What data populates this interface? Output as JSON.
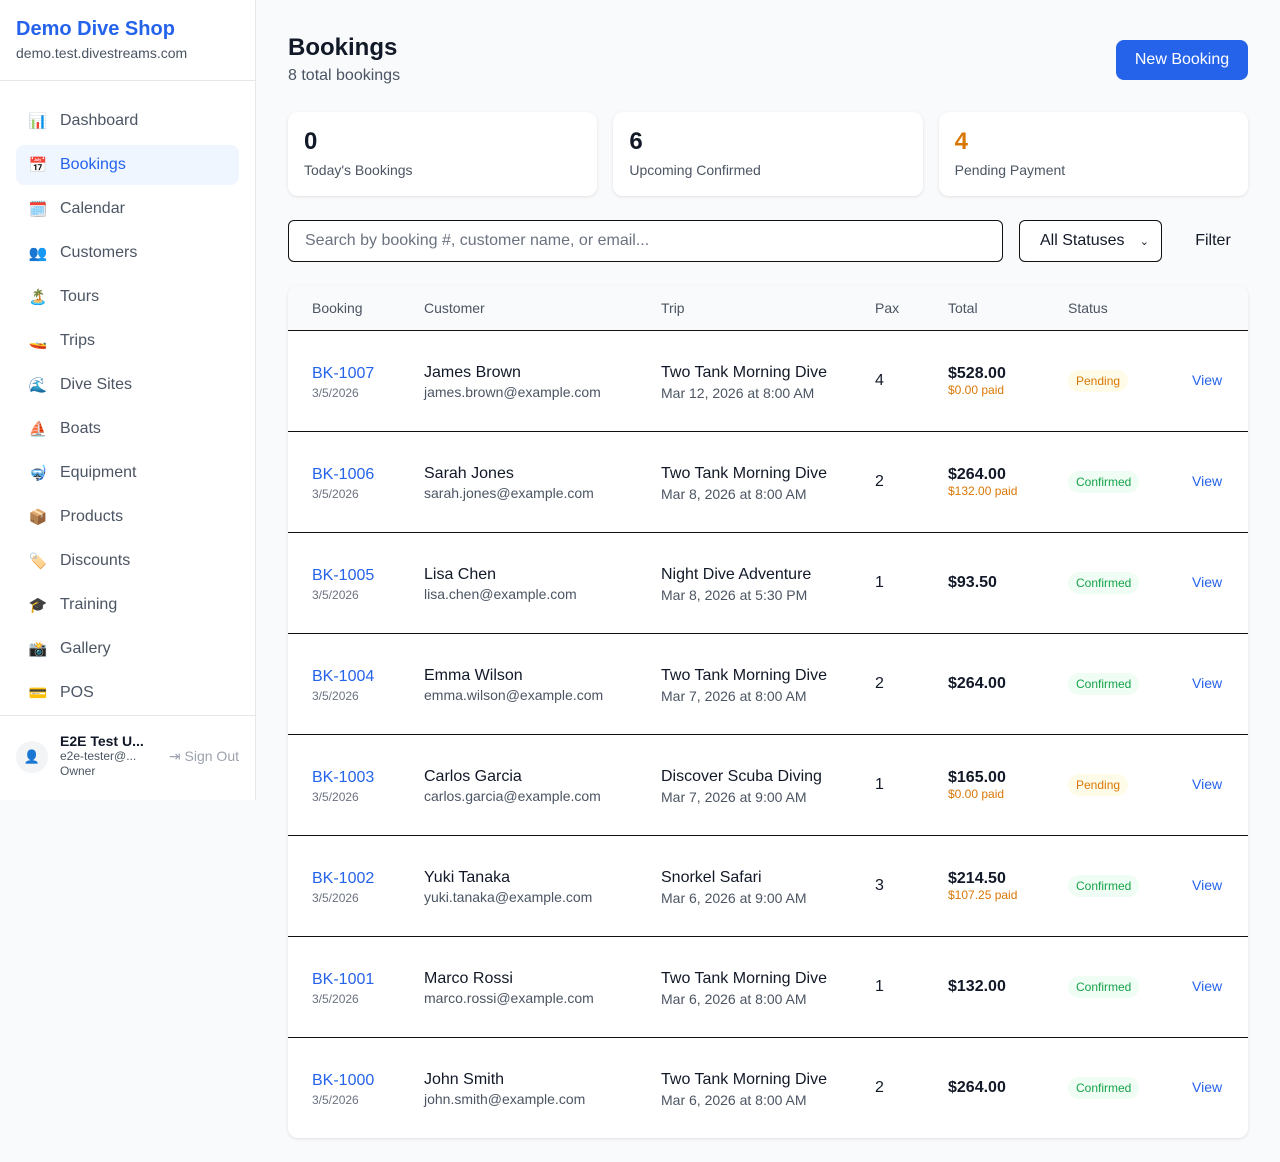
{
  "sidebar": {
    "shop_name": "Demo Dive Shop",
    "domain": "demo.test.divestreams.com",
    "items": [
      {
        "label": "Dashboard",
        "icon": "📊"
      },
      {
        "label": "Bookings",
        "icon": "📅",
        "active": true
      },
      {
        "label": "Calendar",
        "icon": "🗓️"
      },
      {
        "label": "Customers",
        "icon": "👥"
      },
      {
        "label": "Tours",
        "icon": "🏝️"
      },
      {
        "label": "Trips",
        "icon": "🚤"
      },
      {
        "label": "Dive Sites",
        "icon": "🌊"
      },
      {
        "label": "Boats",
        "icon": "⛵"
      },
      {
        "label": "Equipment",
        "icon": "🤿"
      },
      {
        "label": "Products",
        "icon": "📦"
      },
      {
        "label": "Discounts",
        "icon": "🏷️"
      },
      {
        "label": "Training",
        "icon": "🎓"
      },
      {
        "label": "Gallery",
        "icon": "📸"
      },
      {
        "label": "POS",
        "icon": "💳"
      }
    ],
    "user": {
      "name": "E2E Test U...",
      "email": "e2e-tester@...",
      "role": "Owner",
      "sign_out": "Sign Out"
    }
  },
  "header": {
    "title": "Bookings",
    "subtitle": "8 total bookings",
    "new_button": "New Booking"
  },
  "stats": [
    {
      "value": "0",
      "label": "Today's Bookings",
      "color": "#111827"
    },
    {
      "value": "6",
      "label": "Upcoming Confirmed",
      "color": "#111827"
    },
    {
      "value": "4",
      "label": "Pending Payment",
      "color": "#d97706"
    }
  ],
  "search": {
    "placeholder": "Search by booking #, customer name, or email...",
    "status_selected": "All Statuses",
    "filter_label": "Filter"
  },
  "table": {
    "headers": [
      "Booking",
      "Customer",
      "Trip",
      "Pax",
      "Total",
      "Status"
    ],
    "rows": [
      {
        "id": "BK-1007",
        "date": "3/5/2026",
        "name": "James Brown",
        "email": "james.brown@example.com",
        "trip": "Two Tank Morning Dive",
        "when": "Mar 12, 2026 at 8:00 AM",
        "pax": "4",
        "total": "$528.00",
        "paid": "$0.00 paid",
        "status": "Pending",
        "action": "View"
      },
      {
        "id": "BK-1006",
        "date": "3/5/2026",
        "name": "Sarah Jones",
        "email": "sarah.jones@example.com",
        "trip": "Two Tank Morning Dive",
        "when": "Mar 8, 2026 at 8:00 AM",
        "pax": "2",
        "total": "$264.00",
        "paid": "$132.00 paid",
        "status": "Confirmed",
        "action": "View"
      },
      {
        "id": "BK-1005",
        "date": "3/5/2026",
        "name": "Lisa Chen",
        "email": "lisa.chen@example.com",
        "trip": "Night Dive Adventure",
        "when": "Mar 8, 2026 at 5:30 PM",
        "pax": "1",
        "total": "$93.50",
        "paid": "",
        "status": "Confirmed",
        "action": "View"
      },
      {
        "id": "BK-1004",
        "date": "3/5/2026",
        "name": "Emma Wilson",
        "email": "emma.wilson@example.com",
        "trip": "Two Tank Morning Dive",
        "when": "Mar 7, 2026 at 8:00 AM",
        "pax": "2",
        "total": "$264.00",
        "paid": "",
        "status": "Confirmed",
        "action": "View"
      },
      {
        "id": "BK-1003",
        "date": "3/5/2026",
        "name": "Carlos Garcia",
        "email": "carlos.garcia@example.com",
        "trip": "Discover Scuba Diving",
        "when": "Mar 7, 2026 at 9:00 AM",
        "pax": "1",
        "total": "$165.00",
        "paid": "$0.00 paid",
        "status": "Pending",
        "action": "View"
      },
      {
        "id": "BK-1002",
        "date": "3/5/2026",
        "name": "Yuki Tanaka",
        "email": "yuki.tanaka@example.com",
        "trip": "Snorkel Safari",
        "when": "Mar 6, 2026 at 9:00 AM",
        "pax": "3",
        "total": "$214.50",
        "paid": "$107.25 paid",
        "status": "Confirmed",
        "action": "View"
      },
      {
        "id": "BK-1001",
        "date": "3/5/2026",
        "name": "Marco Rossi",
        "email": "marco.rossi@example.com",
        "trip": "Two Tank Morning Dive",
        "when": "Mar 6, 2026 at 8:00 AM",
        "pax": "1",
        "total": "$132.00",
        "paid": "",
        "status": "Confirmed",
        "action": "View"
      },
      {
        "id": "BK-1000",
        "date": "3/5/2026",
        "name": "John Smith",
        "email": "john.smith@example.com",
        "trip": "Two Tank Morning Dive",
        "when": "Mar 6, 2026 at 8:00 AM",
        "pax": "2",
        "total": "$264.00",
        "paid": "",
        "status": "Confirmed",
        "action": "View"
      }
    ]
  }
}
